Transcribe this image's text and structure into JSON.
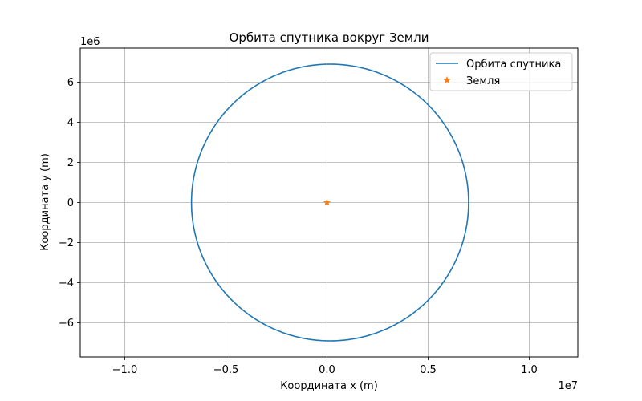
{
  "chart_data": {
    "type": "line",
    "title": "Орбита спутника вокруг Земли",
    "xlabel": "Координата x (m)",
    "ylabel": "Координата y (m)",
    "x_offset_label": "1e7",
    "y_offset_label": "1e6",
    "xlim": [
      -12200000,
      12400000
    ],
    "ylim": [
      -7700000,
      7700000
    ],
    "x_ticks": [
      -10000000,
      -5000000,
      0,
      5000000,
      10000000
    ],
    "x_tick_labels": [
      "−1.0",
      "−0.5",
      "0.0",
      "0.5",
      "1.0"
    ],
    "y_ticks": [
      -6000000,
      -4000000,
      -2000000,
      0,
      2000000,
      4000000,
      6000000
    ],
    "y_tick_labels": [
      "−6",
      "−4",
      "−2",
      "0",
      "2",
      "4",
      "6"
    ],
    "grid": true,
    "legend_position": "top-right",
    "series": [
      {
        "name": "Орбита спутника",
        "kind": "orbit",
        "color": "#1f77b4",
        "center": [
          150000,
          0
        ],
        "semi_major_x": 6850000,
        "semi_minor_y": 6900000
      },
      {
        "name": "Земля",
        "kind": "point",
        "marker": "star",
        "color": "#ff7f0e",
        "x": [
          0
        ],
        "y": [
          0
        ]
      }
    ]
  }
}
